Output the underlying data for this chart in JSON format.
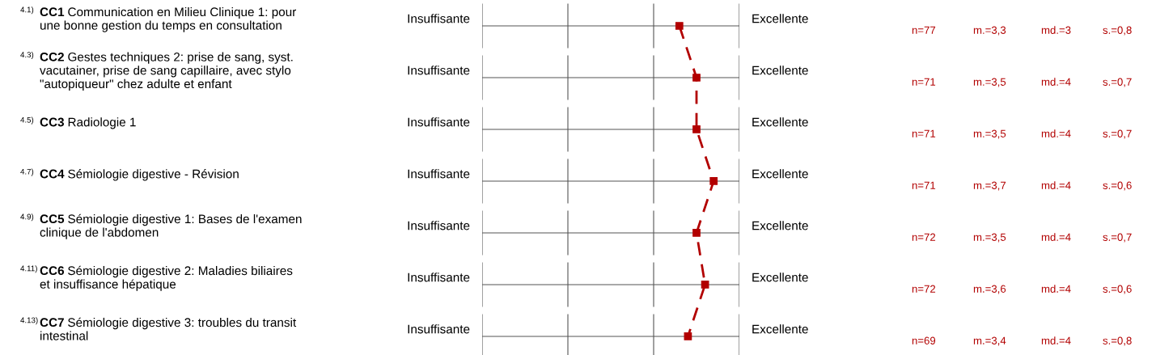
{
  "chart_data": {
    "type": "line",
    "orientation": "horizontal",
    "categories": [
      "4.1) CC1 Communication en Milieu Clinique 1: pour une bonne gestion du temps en consultation",
      "4.3) CC2 Gestes techniques 2: prise de sang, syst. vacutainer, prise de sang capillaire, avec stylo \"autopiqueur\" chez adulte et enfant",
      "4.5) CC3 Radiologie 1",
      "4.7) CC4 Sémiologie digestive - Révision",
      "4.9) CC5 Sémiologie digestive 1: Bases de l'examen clinique de l'abdomen",
      "4.11) CC6 Sémiologie digestive 2: Maladies biliaires et insuffisance hépatique",
      "4.13) CC7 Sémiologie digestive 3: troubles du transit intestinal"
    ],
    "series": [
      {
        "color": "#b20000",
        "values": [
          3.3,
          3.5,
          3.5,
          3.7,
          3.5,
          3.6,
          3.4
        ],
        "value_labels": [
          "m.=3,3",
          "m.=3,5",
          "m.=3,5",
          "m.=3,7",
          "m.=3,5",
          "m.=3,6",
          "m.=3,4"
        ]
      }
    ],
    "xlim": [
      1,
      4
    ],
    "marker": "square",
    "line_style": "dashed",
    "annotations": [
      "Insuffisante",
      "Excellente",
      "n=77",
      "md.=3",
      "s.=0,8",
      "Insuffisante",
      "Excellente",
      "n=71",
      "md.=4",
      "s.=0,7",
      "Insuffisante",
      "Excellente",
      "n=71",
      "md.=4",
      "s.=0,7",
      "Insuffisante",
      "Excellente",
      "n=71",
      "md.=4",
      "s.=0,6",
      "Insuffisante",
      "Excellente",
      "n=72",
      "md.=4",
      "s.=0,7",
      "Insuffisante",
      "Excellente",
      "n=72",
      "md.=4",
      "s.=0,6",
      "Insuffisante",
      "Excellente",
      "n=69",
      "md.=4",
      "s.=0,8"
    ]
  }
}
